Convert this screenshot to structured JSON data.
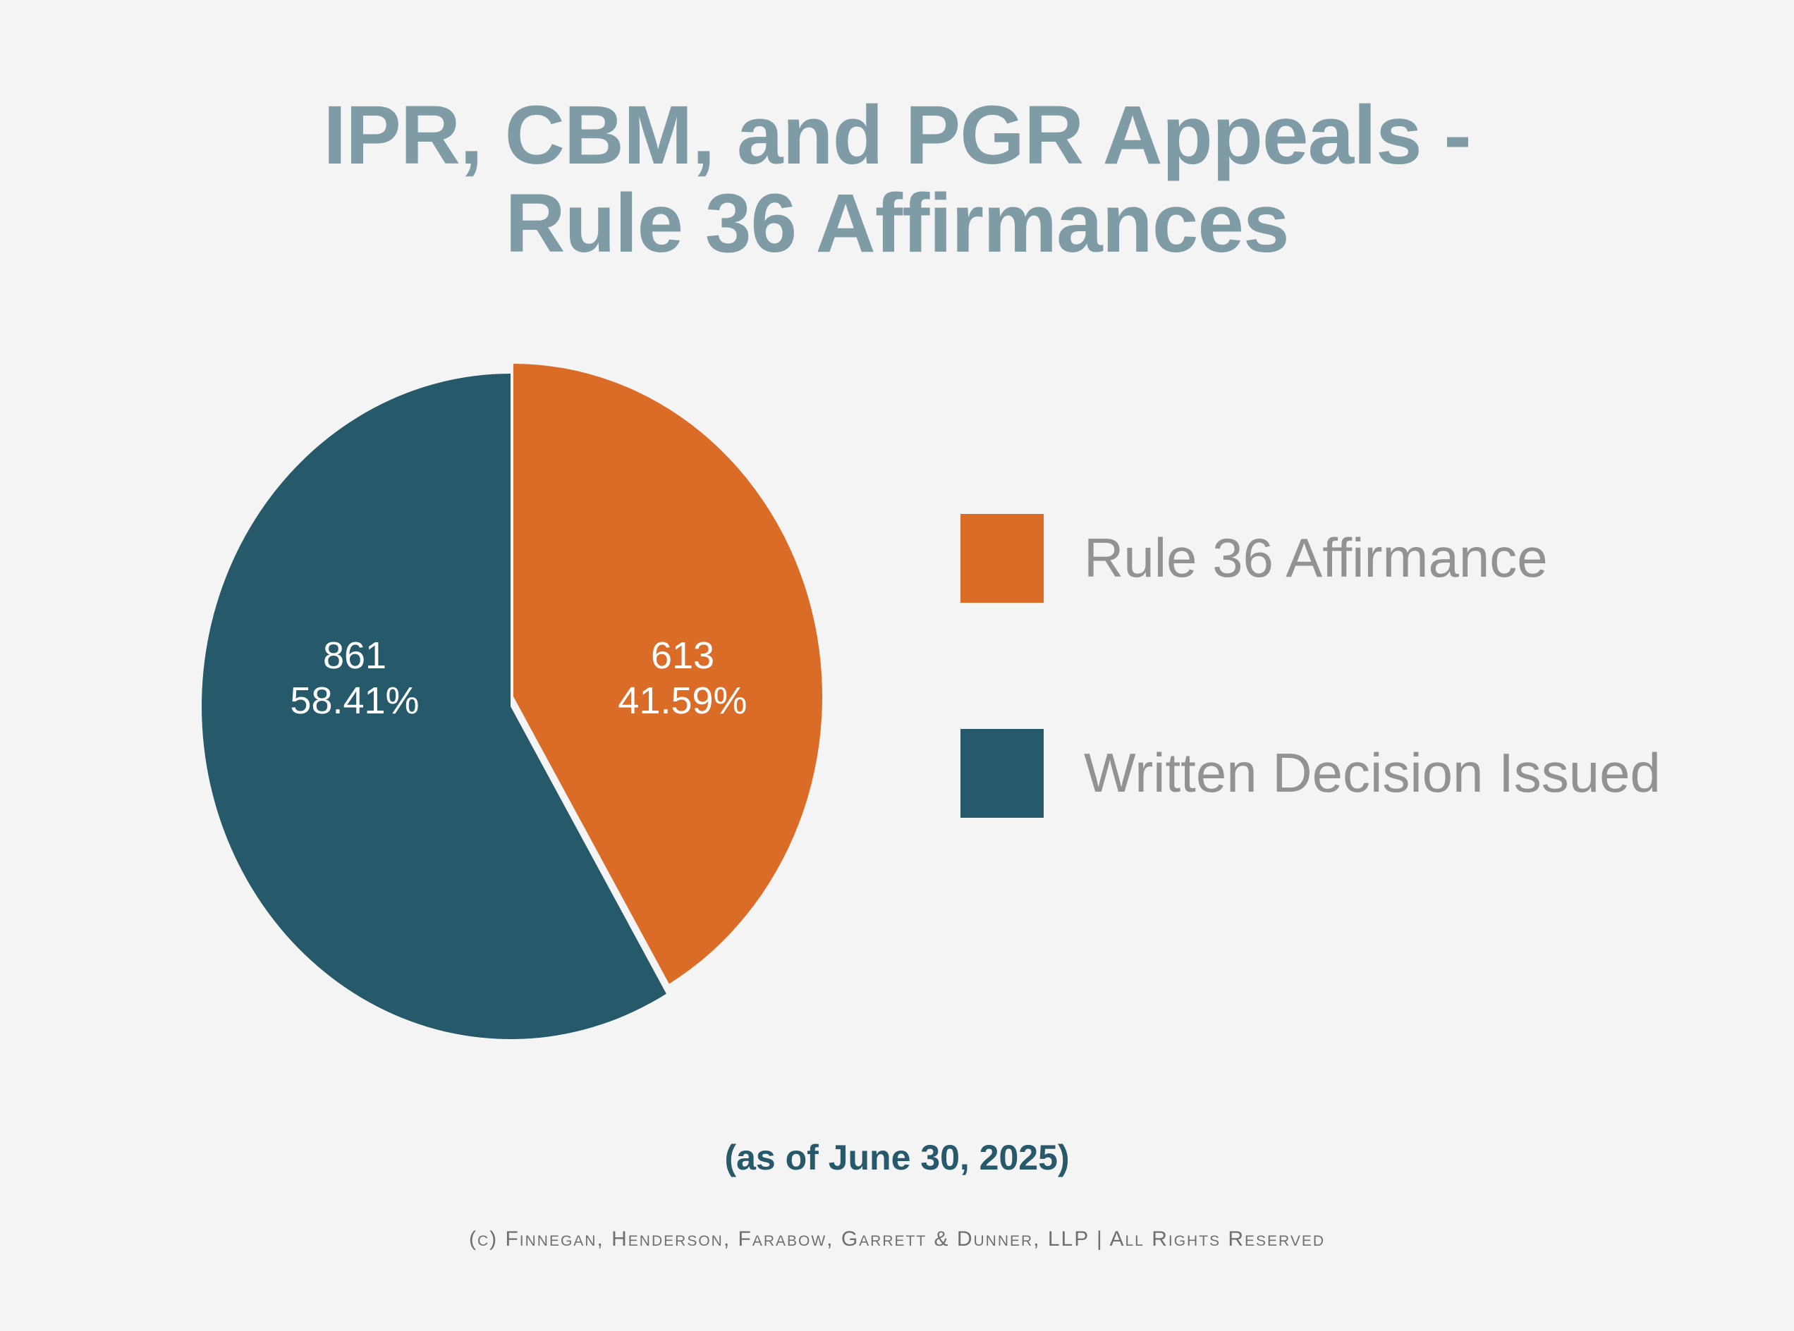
{
  "title": {
    "line1": "IPR, CBM, and PGR Appeals -",
    "line2": "Rule 36 Affirmances"
  },
  "chart_data": {
    "type": "pie",
    "title": "IPR, CBM, and PGR Appeals - Rule 36 Affirmances",
    "categories": [
      "Rule 36 Affirmance",
      "Written Decision Issued"
    ],
    "values": [
      613,
      861
    ],
    "percentages": [
      "41.59%",
      "58.41%"
    ],
    "colors": [
      "#db6c27",
      "#265a6a"
    ],
    "start_angle": "12 o'clock, clockwise",
    "exploded": [
      "Rule 36 Affirmance"
    ],
    "legend_position": "right",
    "labels": [
      {
        "value": "613",
        "percent": "41.59%"
      },
      {
        "value": "861",
        "percent": "58.41%"
      }
    ]
  },
  "legend": [
    {
      "label": "Rule 36 Affirmance",
      "color": "#db6c27"
    },
    {
      "label": "Written Decision Issued",
      "color": "#265a6a"
    }
  ],
  "as_of": "(as of June 30, 2025)",
  "footer": "(c) Finnegan, Henderson, Farabow, Garrett & Dunner, LLP | All Rights Reserved",
  "colors": {
    "background": "#f4f4f4",
    "title": "#7f9ca6",
    "legend_text": "#929292",
    "as_of": "#27596a",
    "footer": "#6f6f6f"
  }
}
